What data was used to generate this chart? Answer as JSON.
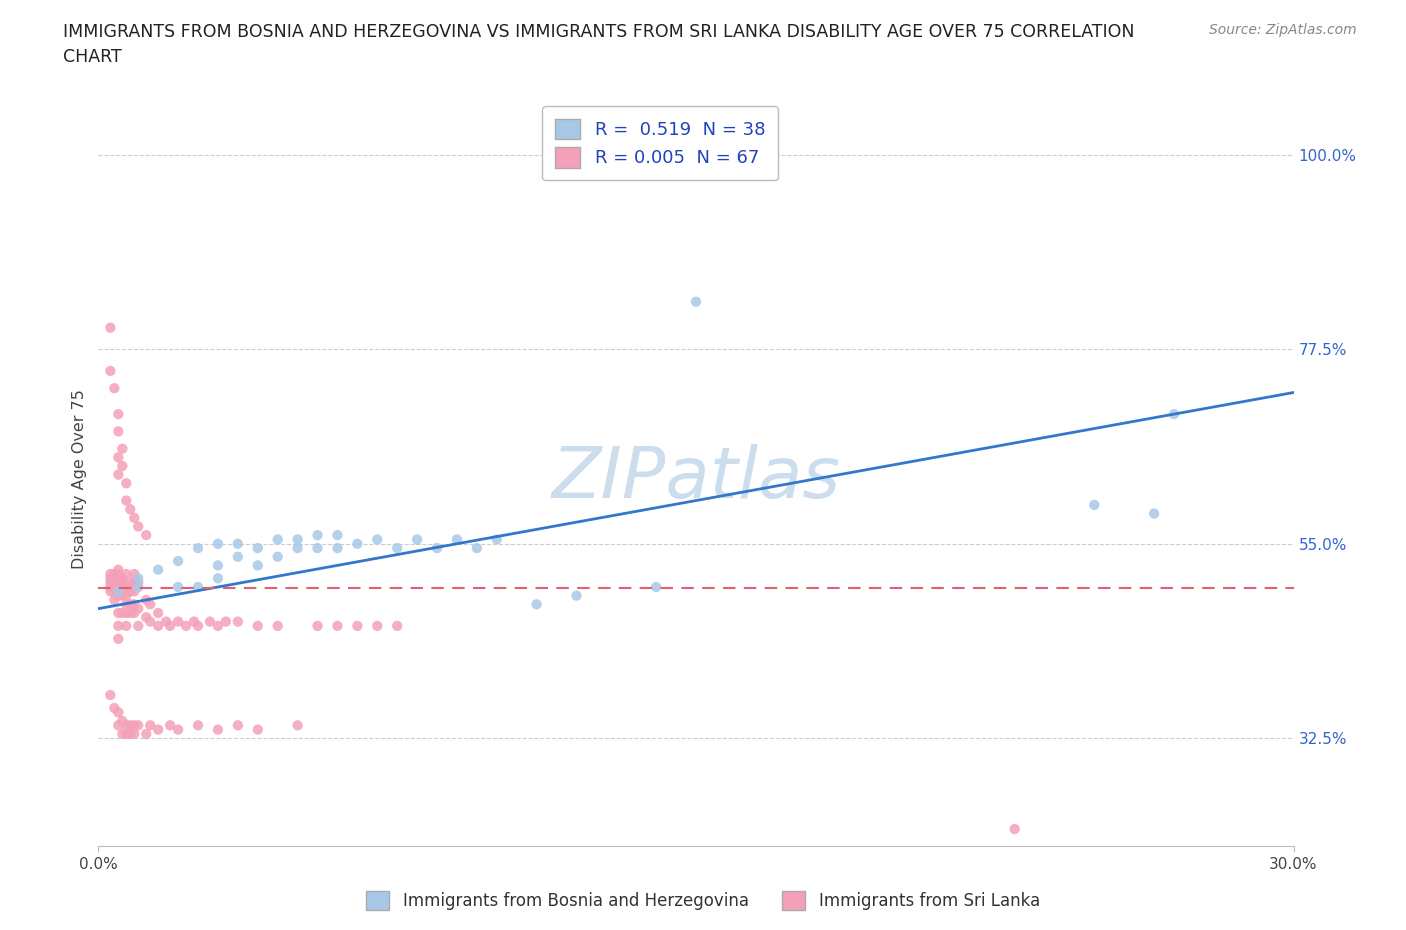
{
  "title_line1": "IMMIGRANTS FROM BOSNIA AND HERZEGOVINA VS IMMIGRANTS FROM SRI LANKA DISABILITY AGE OVER 75 CORRELATION",
  "title_line2": "CHART",
  "source": "Source: ZipAtlas.com",
  "xlabel_bosnia": "Immigrants from Bosnia and Herzegovina",
  "xlabel_srilanka": "Immigrants from Sri Lanka",
  "ylabel": "Disability Age Over 75",
  "xlim": [
    0.0,
    0.3
  ],
  "ylim": [
    0.2,
    1.05
  ],
  "ytick_vals": [
    0.325,
    0.55,
    0.775,
    1.0
  ],
  "ytick_labels": [
    "32.5%",
    "55.0%",
    "77.5%",
    "100.0%"
  ],
  "R_bosnia": 0.519,
  "N_bosnia": 38,
  "R_srilanka": 0.005,
  "N_srilanka": 67,
  "color_bosnia": "#a8c8e8",
  "color_srilanka": "#f4a0b8",
  "line_color_bosnia": "#3377cc",
  "line_color_srilanka": "#e06070",
  "watermark": "ZIPatlas",
  "watermark_color": "#ccdded",
  "bosnia_x": [
    0.005,
    0.01,
    0.01,
    0.015,
    0.02,
    0.02,
    0.025,
    0.025,
    0.03,
    0.03,
    0.03,
    0.035,
    0.035,
    0.04,
    0.04,
    0.045,
    0.045,
    0.05,
    0.05,
    0.055,
    0.055,
    0.06,
    0.06,
    0.065,
    0.07,
    0.075,
    0.08,
    0.085,
    0.09,
    0.095,
    0.1,
    0.11,
    0.12,
    0.14,
    0.15,
    0.25,
    0.265,
    0.27
  ],
  "bosnia_y": [
    0.495,
    0.5,
    0.51,
    0.52,
    0.5,
    0.53,
    0.5,
    0.545,
    0.51,
    0.525,
    0.55,
    0.535,
    0.55,
    0.525,
    0.545,
    0.535,
    0.555,
    0.545,
    0.555,
    0.545,
    0.56,
    0.545,
    0.56,
    0.55,
    0.555,
    0.545,
    0.555,
    0.545,
    0.555,
    0.545,
    0.555,
    0.48,
    0.49,
    0.5,
    0.83,
    0.595,
    0.585,
    0.7
  ],
  "srilanka_x": [
    0.003,
    0.003,
    0.003,
    0.003,
    0.003,
    0.004,
    0.004,
    0.004,
    0.004,
    0.004,
    0.004,
    0.005,
    0.005,
    0.005,
    0.005,
    0.005,
    0.005,
    0.005,
    0.005,
    0.005,
    0.006,
    0.006,
    0.006,
    0.006,
    0.006,
    0.007,
    0.007,
    0.007,
    0.007,
    0.007,
    0.007,
    0.008,
    0.008,
    0.008,
    0.008,
    0.009,
    0.009,
    0.009,
    0.009,
    0.009,
    0.01,
    0.01,
    0.01,
    0.012,
    0.012,
    0.013,
    0.013,
    0.015,
    0.015,
    0.017,
    0.018,
    0.02,
    0.022,
    0.024,
    0.025,
    0.028,
    0.03,
    0.032,
    0.035,
    0.04,
    0.045,
    0.055,
    0.06,
    0.065,
    0.07,
    0.075,
    0.23
  ],
  "srilanka_y": [
    0.495,
    0.5,
    0.505,
    0.51,
    0.515,
    0.485,
    0.495,
    0.5,
    0.505,
    0.51,
    0.515,
    0.44,
    0.455,
    0.47,
    0.49,
    0.5,
    0.505,
    0.51,
    0.515,
    0.52,
    0.47,
    0.49,
    0.5,
    0.505,
    0.51,
    0.455,
    0.47,
    0.48,
    0.49,
    0.5,
    0.515,
    0.47,
    0.48,
    0.495,
    0.505,
    0.47,
    0.48,
    0.495,
    0.505,
    0.515,
    0.455,
    0.475,
    0.505,
    0.465,
    0.485,
    0.46,
    0.48,
    0.455,
    0.47,
    0.46,
    0.455,
    0.46,
    0.455,
    0.46,
    0.455,
    0.46,
    0.455,
    0.46,
    0.46,
    0.455,
    0.455,
    0.455,
    0.455,
    0.455,
    0.455,
    0.455,
    0.22
  ],
  "srilanka_high_x": [
    0.003,
    0.003,
    0.004,
    0.005,
    0.005,
    0.005,
    0.005,
    0.006,
    0.006,
    0.007,
    0.007,
    0.008,
    0.009,
    0.01,
    0.012
  ],
  "srilanka_high_y": [
    0.8,
    0.75,
    0.73,
    0.7,
    0.68,
    0.65,
    0.63,
    0.66,
    0.64,
    0.62,
    0.6,
    0.59,
    0.58,
    0.57,
    0.56
  ],
  "srilanka_low_x": [
    0.003,
    0.004,
    0.005,
    0.005,
    0.006,
    0.006,
    0.007,
    0.007,
    0.008,
    0.008,
    0.009,
    0.009,
    0.01,
    0.012,
    0.013,
    0.015,
    0.018,
    0.02,
    0.025,
    0.03,
    0.035,
    0.04,
    0.05
  ],
  "srilanka_low_y": [
    0.375,
    0.36,
    0.355,
    0.34,
    0.345,
    0.33,
    0.34,
    0.33,
    0.34,
    0.33,
    0.34,
    0.33,
    0.34,
    0.33,
    0.34,
    0.335,
    0.34,
    0.335,
    0.34,
    0.335,
    0.34,
    0.335,
    0.34
  ]
}
